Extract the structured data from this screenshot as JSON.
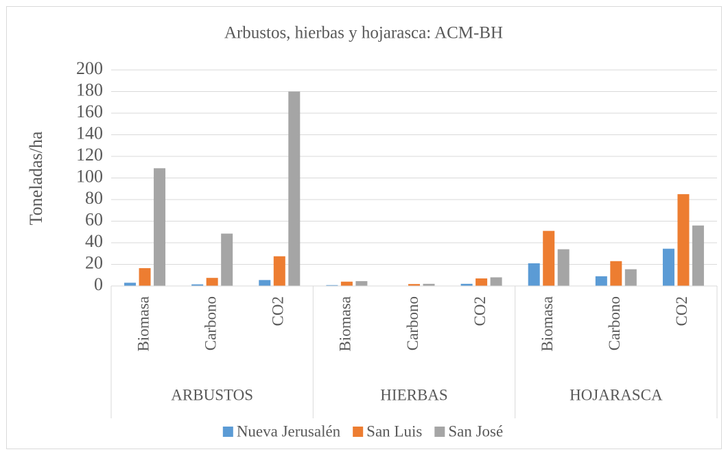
{
  "chart_data": {
    "type": "bar",
    "title": "Arbustos, hierbas y hojarasca: ACM-BH",
    "y_label": "Toneladas/ha",
    "groups": [
      {
        "name": "ARBUSTOS",
        "categories": [
          "Biomasa",
          "Carbono",
          "CO2"
        ]
      },
      {
        "name": "HIERBAS",
        "categories": [
          "Biomasa",
          "Carbono",
          "CO2"
        ]
      },
      {
        "name": "HOJARASCA",
        "categories": [
          "Biomasa",
          "Carbono",
          "CO2"
        ]
      }
    ],
    "series": [
      {
        "name": "Nueva Jerusalén",
        "color": "#5b9bd5",
        "values": [
          3,
          1.5,
          5.5,
          0.8,
          0.3,
          2,
          21,
          9,
          34.5
        ]
      },
      {
        "name": "San Luis",
        "color": "#ed7d31",
        "values": [
          16.5,
          7.5,
          27.5,
          4,
          1.8,
          7,
          51,
          23,
          85
        ]
      },
      {
        "name": "San José",
        "color": "#a5a5a5",
        "values": [
          109,
          48.5,
          180,
          4.5,
          2,
          8,
          34,
          15.5,
          56
        ]
      }
    ],
    "ylim": [
      0,
      200
    ],
    "yticks": [
      0,
      20,
      40,
      60,
      80,
      100,
      120,
      140,
      160,
      180,
      200
    ],
    "grid": true,
    "legend": "bottom"
  }
}
